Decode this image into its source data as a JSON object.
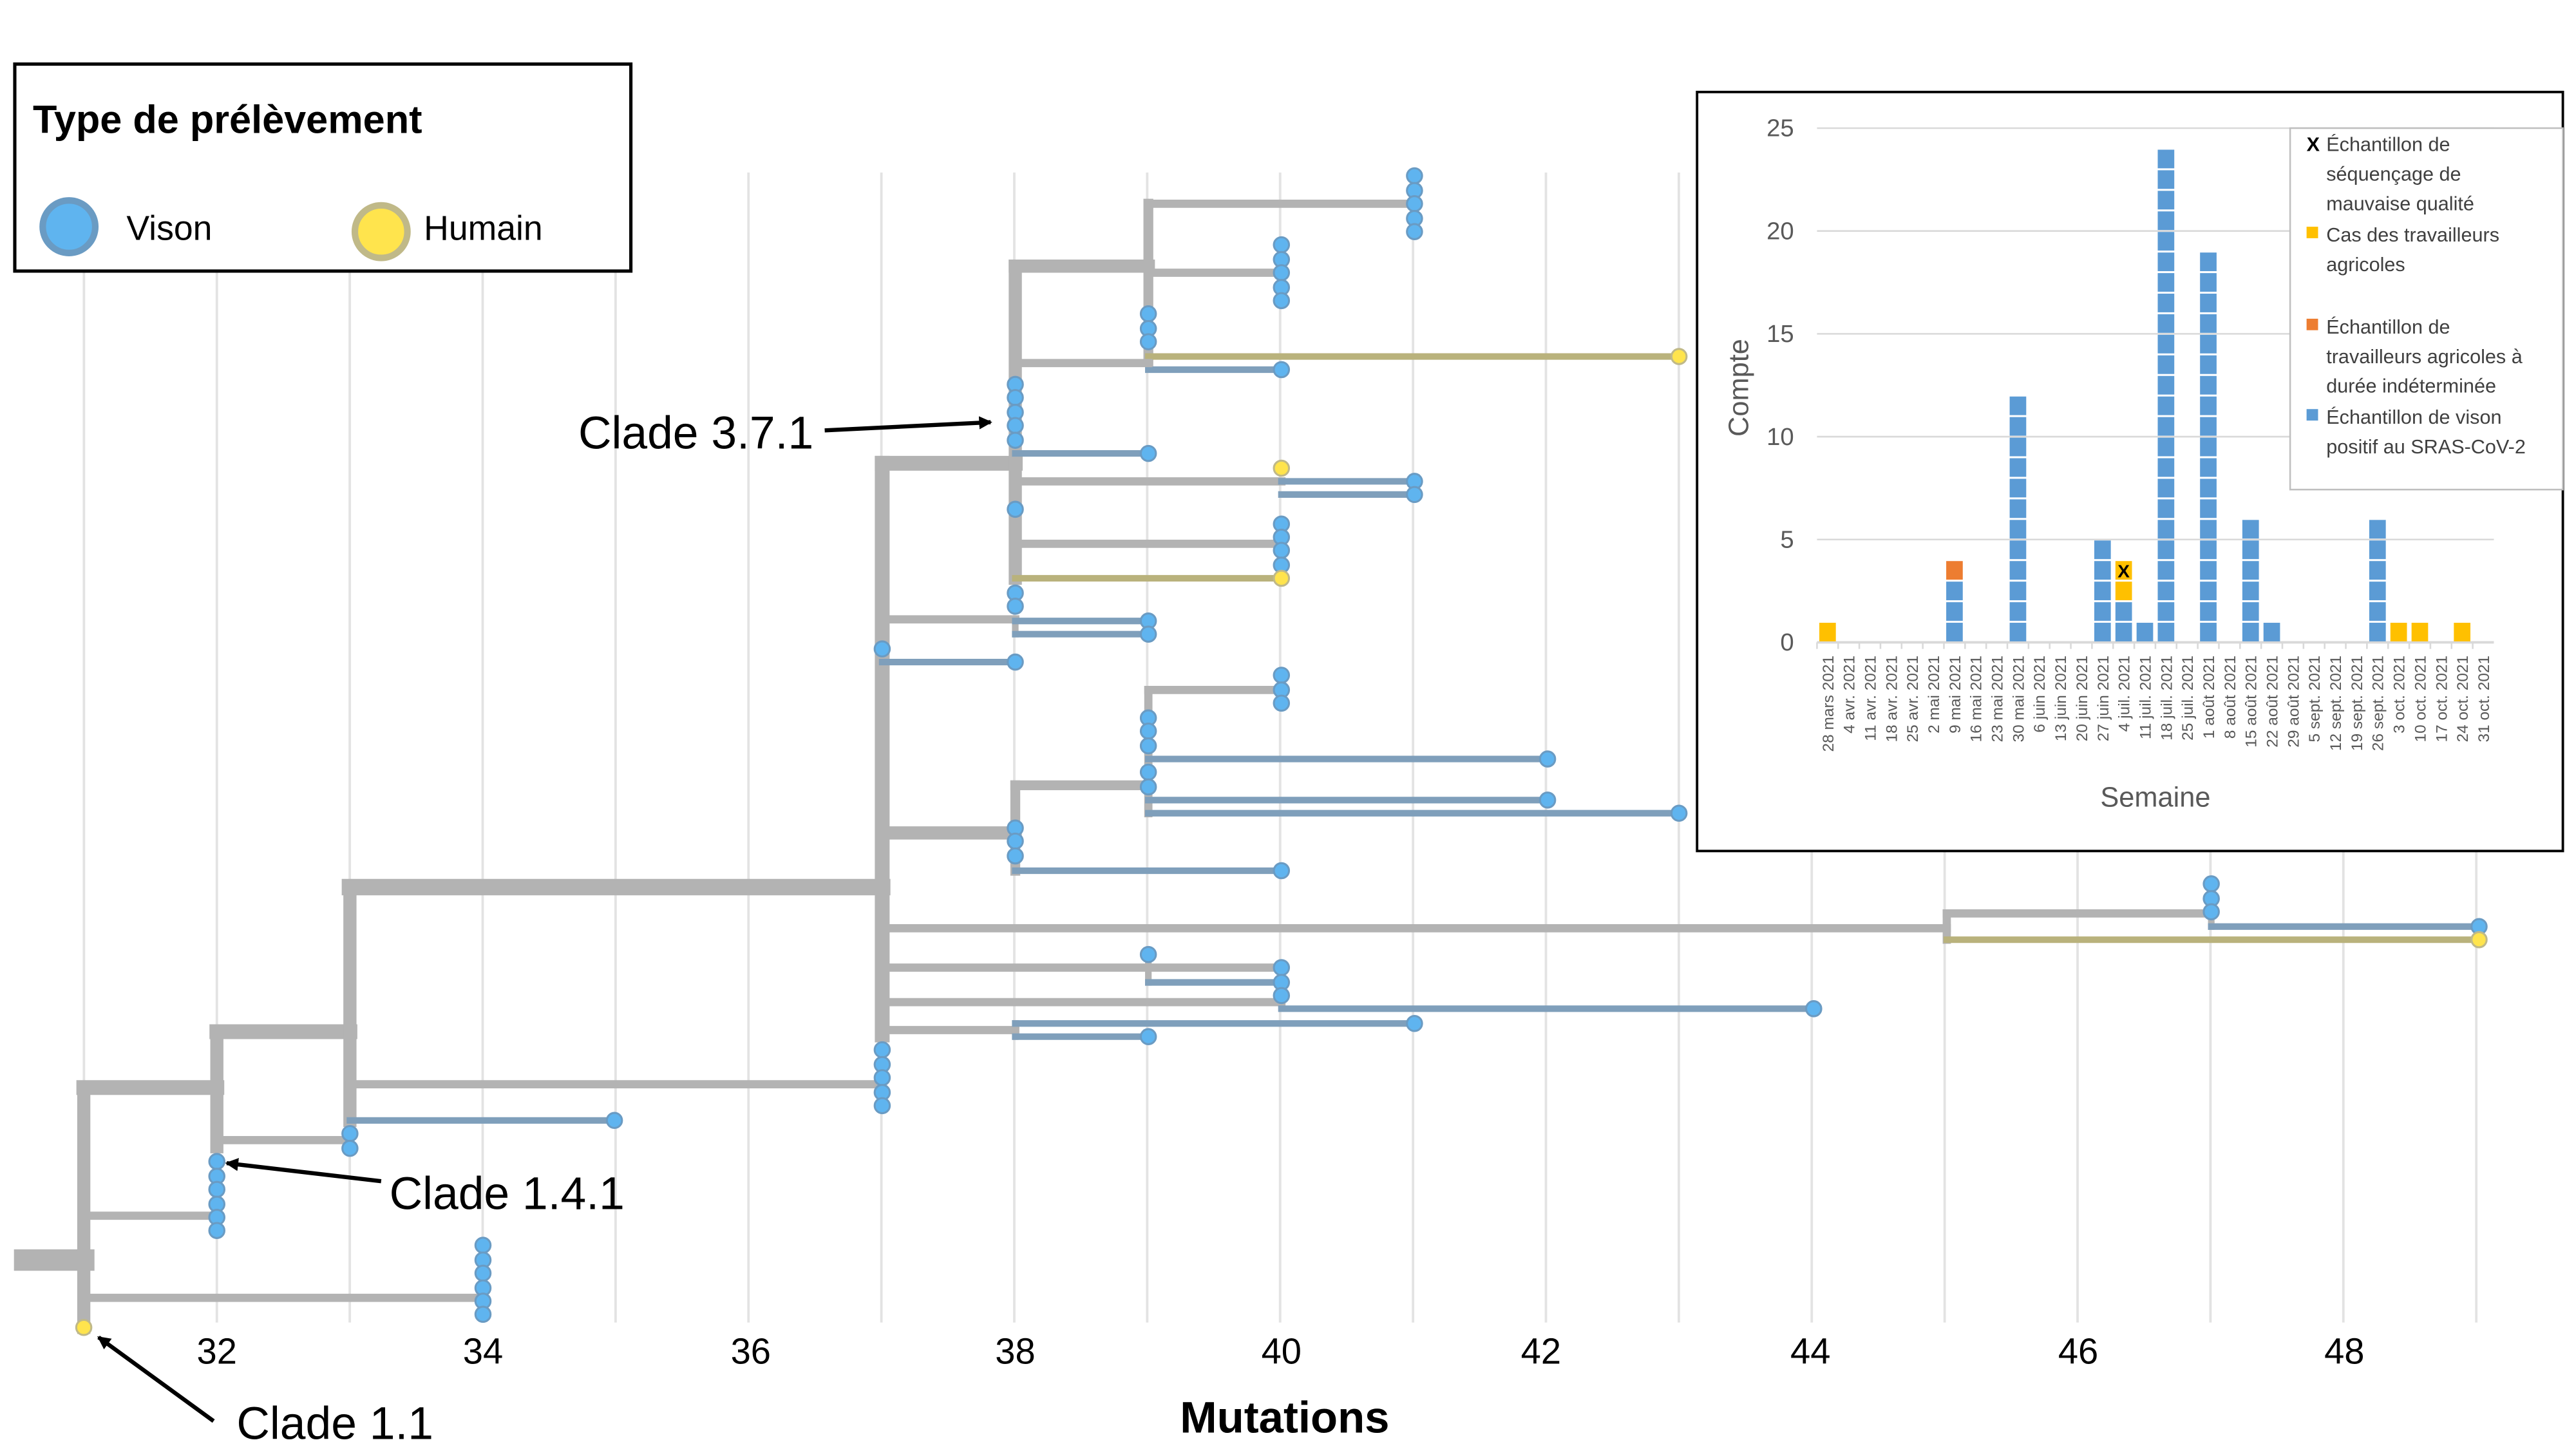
{
  "legend": {
    "title": "Type de prélèvement",
    "items": [
      {
        "label": "Vison",
        "fill": "#5fb4ef",
        "stroke": "#6a9bc3"
      },
      {
        "label": "Humain",
        "fill": "#ffe44d",
        "stroke": "#c0b988"
      }
    ]
  },
  "tree": {
    "xlabel": "Mutations",
    "x_ticks": [
      "32",
      "34",
      "36",
      "38",
      "40",
      "42",
      "44",
      "46",
      "48"
    ],
    "annotations": [
      "Clade 3.7.1",
      "Clade 1.4.1",
      "Clade 1.1"
    ],
    "colors": {
      "branch": "#b3b3b3",
      "mink_branch": "#7f9fbb",
      "human_branch": "#b9b27c"
    }
  },
  "chart_data": {
    "type": "bar",
    "stacked": true,
    "xlabel": "Semaine",
    "ylabel": "Compte",
    "ylim": [
      0,
      25
    ],
    "y_ticks": [
      "0",
      "5",
      "10",
      "15",
      "20",
      "25"
    ],
    "grid": true,
    "legend_placement": "top-right",
    "categories": [
      "28 mars 2021",
      "4 avr. 2021",
      "11 avr. 2021",
      "18 avr. 2021",
      "25 avr. 2021",
      "2 mai 2021",
      "9 mai 2021",
      "16 mai 2021",
      "23 mai 2021",
      "30 mai 2021",
      "6 juin 2021",
      "13 juin 2021",
      "20 juin 2021",
      "27 juin 2021",
      "4 juil. 2021",
      "11 juil. 2021",
      "18 juil. 2021",
      "25 juil. 2021",
      "1 août 2021",
      "8 août 2021",
      "15 août 2021",
      "22 août 2021",
      "29 août 2021",
      "5 sept. 2021",
      "12 sept. 2021",
      "19 sept. 2021",
      "26 sept. 2021",
      "3 oct. 2021",
      "10 oct. 2021",
      "17 oct. 2021",
      "24 oct. 2021",
      "31 oct. 2021"
    ],
    "series": [
      {
        "name": "Échantillon de vison positif au SRAS-CoV-2",
        "color": "#5b9bd5",
        "values": [
          0,
          0,
          0,
          0,
          0,
          0,
          3,
          0,
          0,
          12,
          0,
          0,
          0,
          5,
          2,
          1,
          24,
          0,
          19,
          0,
          6,
          1,
          0,
          0,
          0,
          0,
          6,
          0,
          0,
          0,
          0,
          0
        ]
      },
      {
        "name": "Cas des travailleurs agricoles",
        "color": "#ffc000",
        "values": [
          1,
          0,
          0,
          0,
          0,
          0,
          0,
          0,
          0,
          0,
          0,
          0,
          0,
          0,
          1,
          0,
          0,
          0,
          0,
          0,
          0,
          0,
          0,
          0,
          0,
          0,
          0,
          1,
          1,
          0,
          1,
          0
        ]
      },
      {
        "name": "Échantillon de séquençage de mauvaise qualité",
        "color": "#ffc000",
        "marker": "X",
        "values": [
          0,
          0,
          0,
          0,
          0,
          0,
          0,
          0,
          0,
          0,
          0,
          0,
          0,
          0,
          1,
          0,
          0,
          0,
          0,
          0,
          0,
          0,
          0,
          0,
          0,
          0,
          0,
          0,
          0,
          0,
          0,
          0
        ]
      },
      {
        "name": "Échantillon de travailleurs agricoles à durée indéterminée",
        "color": "#ed7d31",
        "values": [
          0,
          0,
          0,
          0,
          0,
          0,
          1,
          0,
          0,
          0,
          0,
          0,
          0,
          0,
          0,
          0,
          0,
          0,
          0,
          0,
          0,
          0,
          0,
          0,
          0,
          0,
          0,
          0,
          0,
          0,
          0,
          0
        ]
      }
    ],
    "legend": [
      {
        "marker": "X",
        "color": "#000000",
        "lines": [
          "Échantillon de",
          "séquençage de",
          "mauvaise qualité"
        ]
      },
      {
        "marker": "square",
        "color": "#ffc000",
        "lines": [
          "Cas des travailleurs",
          "agricoles"
        ]
      },
      {
        "marker": "square",
        "color": "#ed7d31",
        "lines": [
          "Échantillon de",
          "travailleurs agricoles à",
          "durée indéterminée"
        ]
      },
      {
        "marker": "square",
        "color": "#5b9bd5",
        "lines": [
          "Échantillon de vison",
          "positif au SRAS-CoV-2"
        ]
      }
    ]
  }
}
